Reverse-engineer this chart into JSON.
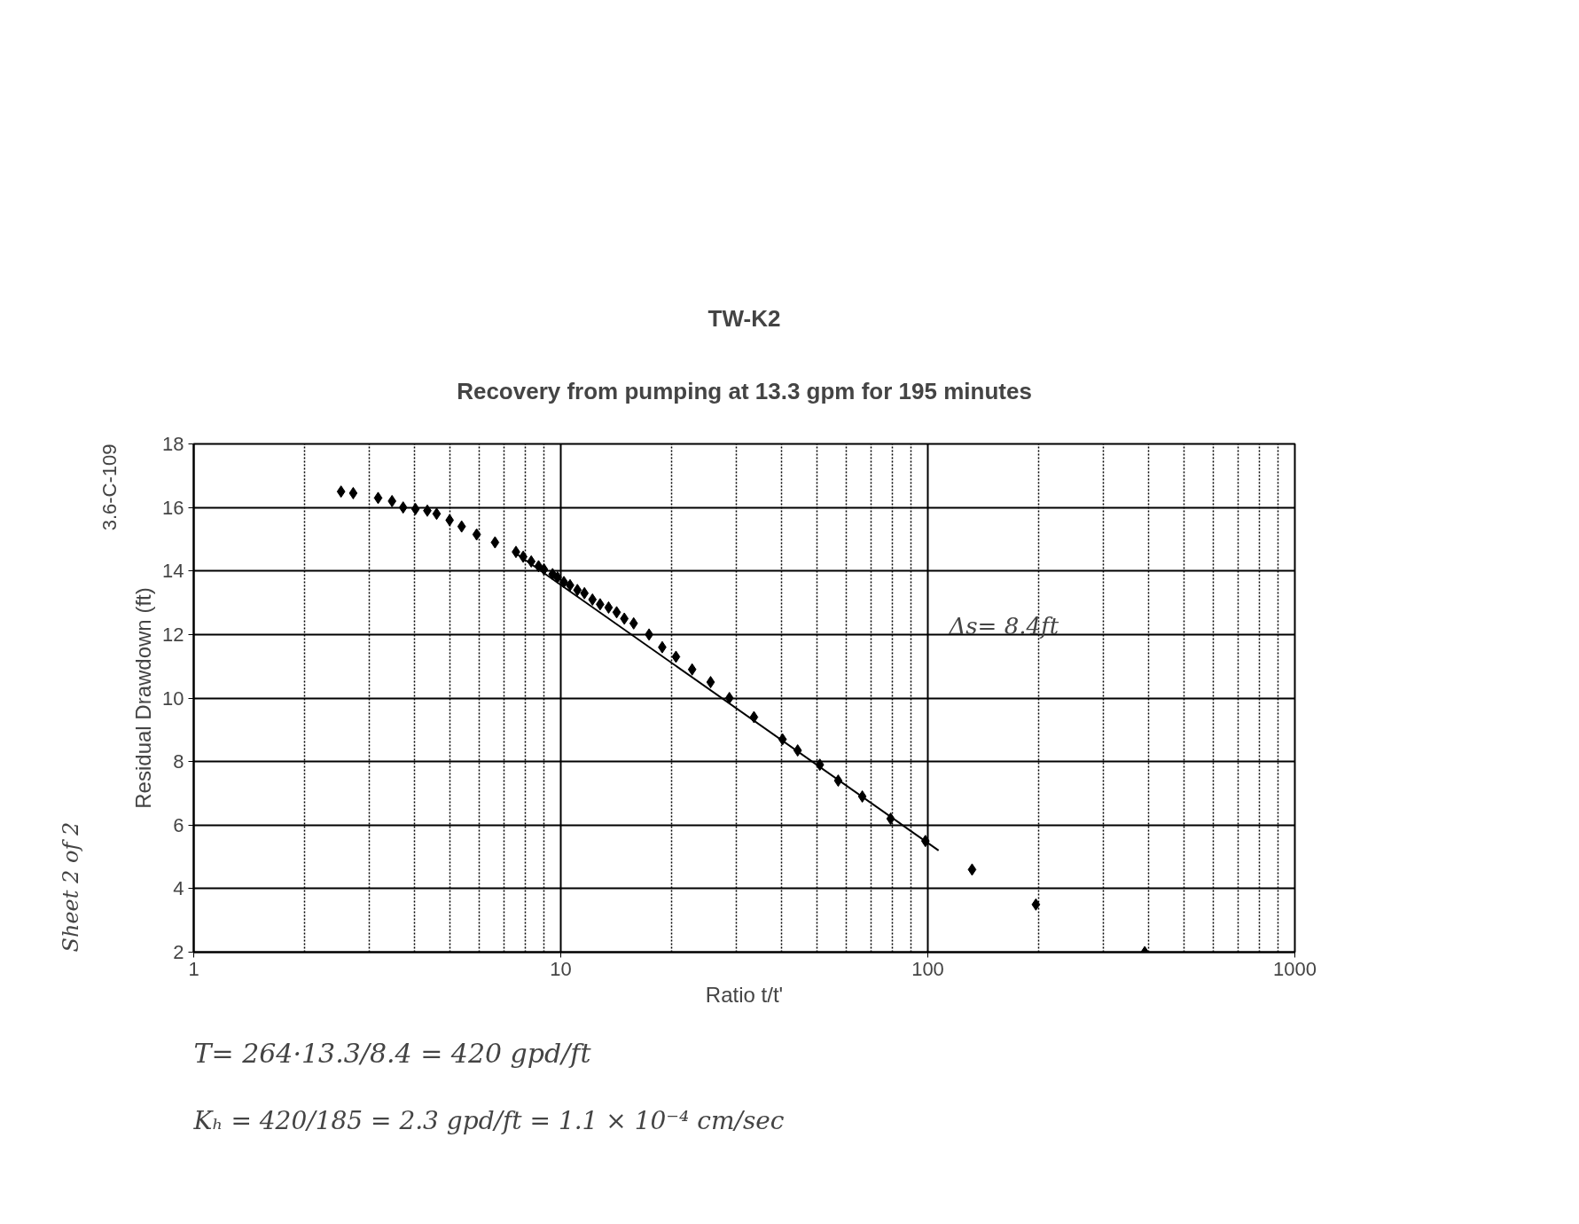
{
  "chart_data": {
    "type": "scatter",
    "title": "TW-K2",
    "subtitle": "Recovery from pumping at 13.3 gpm for 195 minutes",
    "xlabel": "Ratio t/t'",
    "ylabel": "Residual Drawdown (ft)",
    "log": "x",
    "xlim": [
      1,
      1000
    ],
    "xticks": [
      1,
      10,
      100,
      1000
    ],
    "ylim": [
      2,
      18
    ],
    "yticks": [
      2,
      4,
      6,
      8,
      10,
      12,
      14,
      16,
      18
    ],
    "grid": true,
    "marker": "diamond",
    "series": [
      {
        "color": "#000000",
        "x": [
          2.52,
          2.72,
          3.18,
          3.47,
          3.72,
          4.02,
          4.33,
          4.59,
          4.98,
          5.37,
          5.9,
          6.62,
          7.55,
          7.9,
          8.31,
          8.7,
          9.0,
          9.5,
          9.8,
          10.2,
          10.6,
          11.1,
          11.6,
          12.2,
          12.8,
          13.5,
          14.2,
          14.9,
          15.8,
          17.4,
          18.9,
          20.6,
          22.8,
          25.6,
          28.8,
          33.6,
          40.2,
          44.2,
          50.8,
          57.0,
          66.3,
          79.2,
          98.5,
          132,
          197,
          390
        ],
        "values": [
          16.5,
          16.45,
          16.3,
          16.2,
          16.0,
          15.95,
          15.9,
          15.8,
          15.6,
          15.4,
          15.15,
          14.9,
          14.6,
          14.45,
          14.3,
          14.15,
          14.05,
          13.9,
          13.8,
          13.65,
          13.55,
          13.4,
          13.3,
          13.1,
          12.95,
          12.85,
          12.7,
          12.5,
          12.35,
          12.0,
          11.6,
          11.3,
          10.9,
          10.5,
          10.0,
          9.4,
          8.7,
          8.35,
          7.9,
          7.4,
          6.9,
          6.2,
          5.5,
          4.6,
          3.5,
          2.0
        ]
      },
      {
        "type": "line",
        "color": "#000000",
        "marker": "none",
        "x": [
          7.45,
          107
        ],
        "values": [
          14.6,
          5.2
        ]
      }
    ],
    "annotations": [
      "Δs= 8.4ft",
      "T= 264·13.3/8.4 = 420 gpd/ft",
      "Kₕ = 420/185 = 2.3 gpd/ft = 1.1 × 10⁻⁴ cm/sec",
      "3.6-C-109",
      "Sheet 2 of 2"
    ]
  }
}
